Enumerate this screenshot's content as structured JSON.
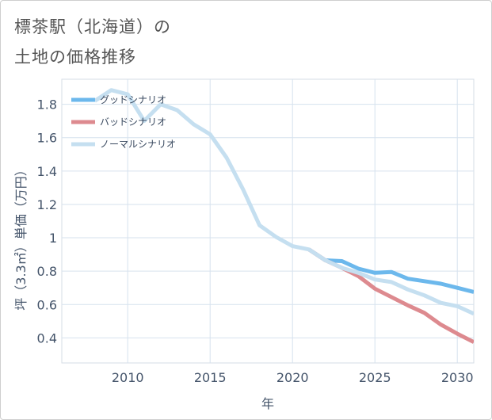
{
  "title_line1": "標茶駅（北海道）の",
  "title_line2": "土地の価格推移",
  "chart_data": {
    "type": "line",
    "xlabel": "年",
    "ylabel": "坪（3.3㎡）単価（万円）",
    "xlim": [
      2006,
      2031
    ],
    "ylim": [
      0.25,
      1.95
    ],
    "xticks": [
      2010,
      2015,
      2020,
      2025,
      2030
    ],
    "yticks": [
      0.4,
      0.6,
      0.8,
      1,
      1.2,
      1.4,
      1.6,
      1.8
    ],
    "xtick_labels": [
      "2010",
      "2015",
      "2020",
      "2025",
      "2030"
    ],
    "ytick_labels": [
      "0.4",
      "0.6",
      "0.8",
      "1",
      "1.2",
      "1.4",
      "1.6",
      "1.8"
    ],
    "grid": true,
    "legend_position": "top-left",
    "series": [
      {
        "name": "グッドシナリオ",
        "color": "#6cb8ec",
        "x": [
          2021,
          2022,
          2023,
          2024,
          2025,
          2026,
          2027,
          2028,
          2029,
          2030,
          2031
        ],
        "y": [
          0.93,
          0.865,
          0.86,
          0.815,
          0.79,
          0.795,
          0.755,
          0.74,
          0.725,
          0.7,
          0.675
        ]
      },
      {
        "name": "バッドシナリオ",
        "color": "#dd8a8f",
        "x": [
          2021,
          2022,
          2023,
          2024,
          2025,
          2026,
          2027,
          2028,
          2029,
          2030,
          2031
        ],
        "y": [
          0.93,
          0.865,
          0.82,
          0.77,
          0.695,
          0.645,
          0.595,
          0.55,
          0.48,
          0.425,
          0.375
        ]
      },
      {
        "name": "ノーマルシナリオ",
        "color": "#c5dff0",
        "x": [
          2008,
          2009,
          2010,
          2011,
          2012,
          2013,
          2014,
          2015,
          2016,
          2017,
          2018,
          2019,
          2020,
          2021,
          2022,
          2023,
          2024,
          2025,
          2026,
          2027,
          2028,
          2029,
          2030,
          2031
        ],
        "y": [
          1.82,
          1.885,
          1.86,
          1.7,
          1.8,
          1.765,
          1.68,
          1.62,
          1.48,
          1.29,
          1.075,
          1.005,
          0.95,
          0.93,
          0.865,
          0.82,
          0.79,
          0.75,
          0.735,
          0.69,
          0.655,
          0.61,
          0.59,
          0.545
        ]
      }
    ]
  }
}
